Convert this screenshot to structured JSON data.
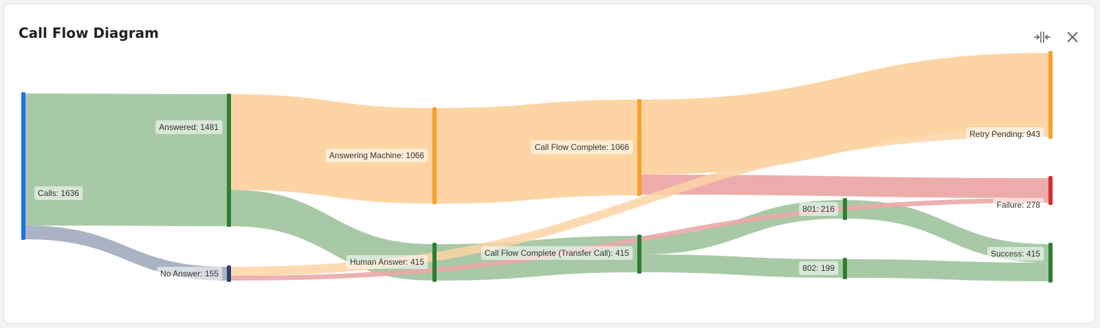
{
  "panel": {
    "title": "Call Flow Diagram"
  },
  "toolbar": {
    "collapse_icon": "collapse-horizontal-icon",
    "close_icon": "close-icon"
  },
  "colors": {
    "blue": "#1a73e8",
    "green": "#2e7d32",
    "orange": "#f5a12a",
    "red": "#d32f2f",
    "navy": "#2c3e66",
    "link_green": "#a8c9a6",
    "link_orange": "#fdd4a3",
    "link_gray": "#a9b3c4",
    "link_red": "#eba8a8"
  },
  "nodes": [
    {
      "id": "calls",
      "label": "Calls: 1636"
    },
    {
      "id": "answered",
      "label": "Answered: 1481"
    },
    {
      "id": "no_answer",
      "label": "No Answer: 155"
    },
    {
      "id": "answering_machine",
      "label": "Answering Machine: 1066"
    },
    {
      "id": "human_answer",
      "label": "Human Answer: 415"
    },
    {
      "id": "cfc",
      "label": "Call Flow Complete: 1066"
    },
    {
      "id": "cfc_transfer",
      "label": "Call Flow Complete (Transfer Call): 415"
    },
    {
      "id": "n801",
      "label": "801: 216"
    },
    {
      "id": "n802",
      "label": "802: 199"
    },
    {
      "id": "retry_pending",
      "label": "Retry Pending: 943"
    },
    {
      "id": "failure",
      "label": "Failure: 278"
    },
    {
      "id": "success",
      "label": "Success: 415"
    }
  ]
}
